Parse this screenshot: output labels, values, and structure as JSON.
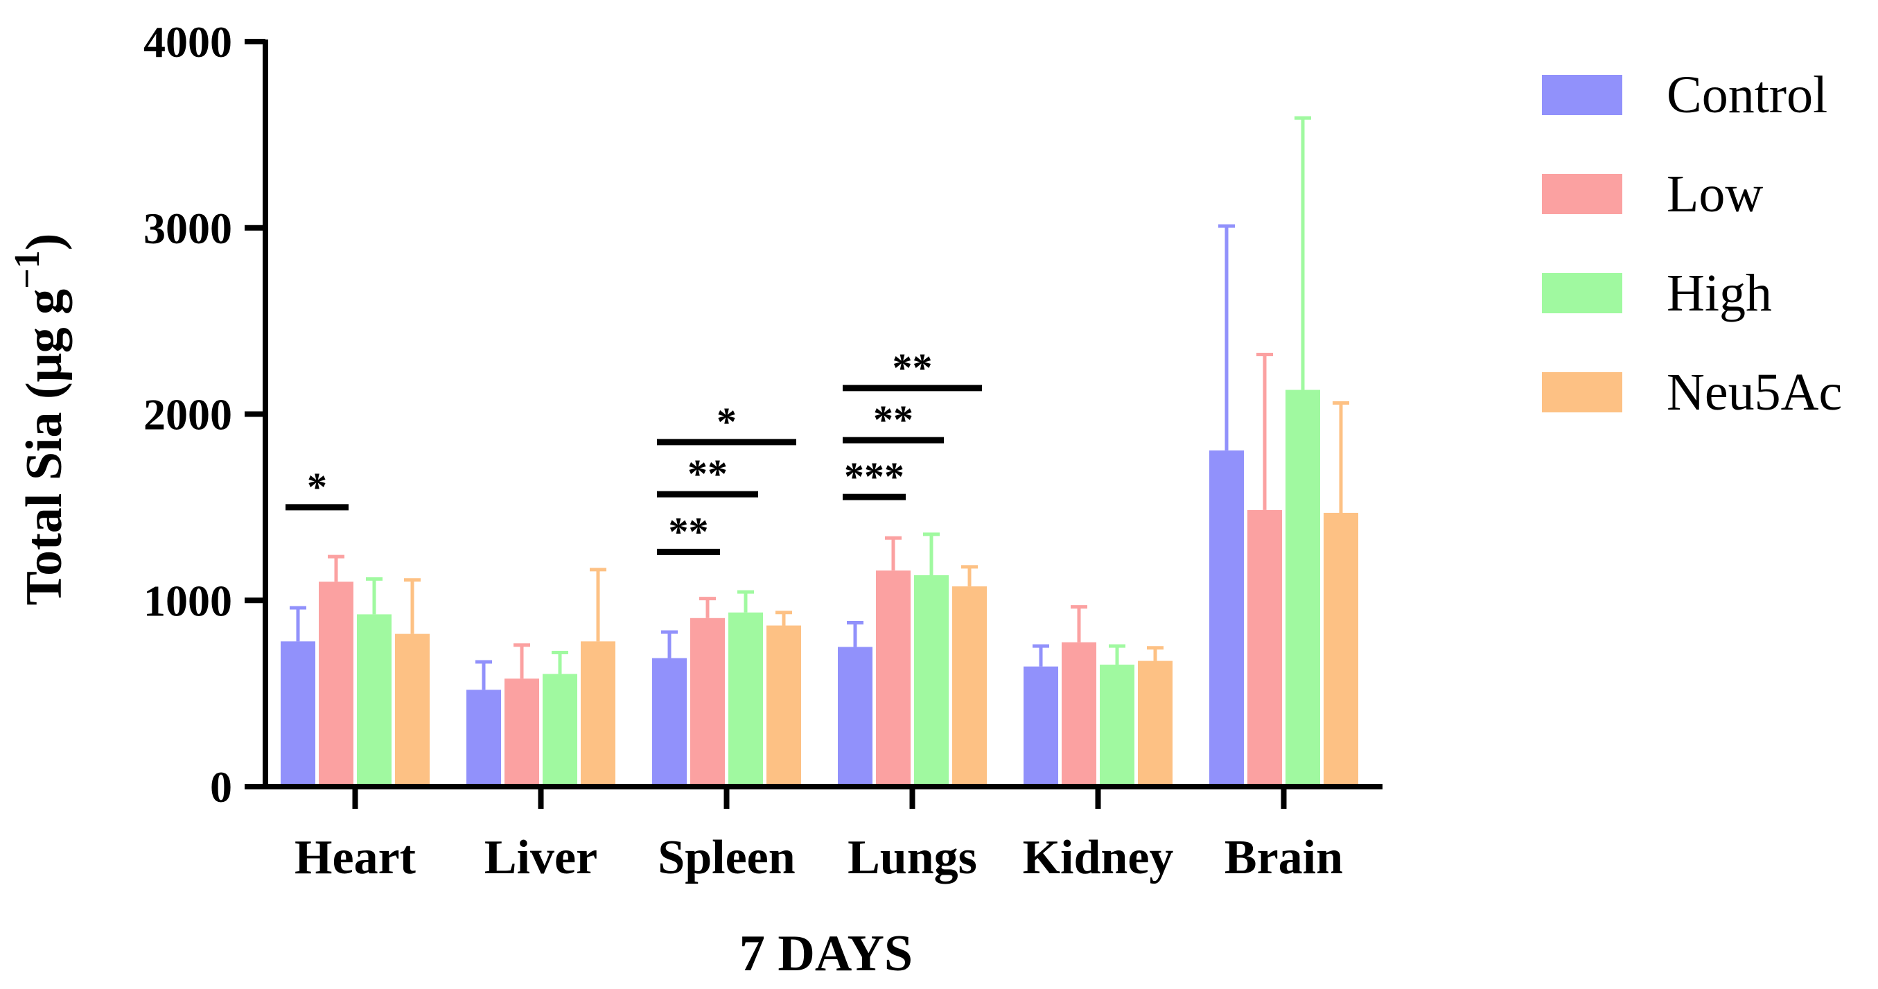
{
  "chart_data": {
    "type": "bar",
    "title": "",
    "xlabel": "7 DAYS",
    "ylabel": "Total Sia (μg g",
    "ylabel_superscript": "−1",
    "ylabel_close": ")",
    "ylim": [
      0,
      4000
    ],
    "yticks": [
      "0",
      "1000",
      "2000",
      "3000",
      "4000"
    ],
    "ytick_values": [
      0,
      1000,
      2000,
      3000,
      4000
    ],
    "categories": [
      "Heart",
      "Liver",
      "Spleen",
      "Lungs",
      "Kidney",
      "Brain"
    ],
    "legend_position": "top-right",
    "series": [
      {
        "name": "Control",
        "color": "#9191fb",
        "values": [
          780,
          520,
          690,
          750,
          645,
          1805
        ],
        "errors": [
          180,
          150,
          140,
          130,
          110,
          1205
        ]
      },
      {
        "name": "Low",
        "color": "#fba1a1",
        "values": [
          1100,
          580,
          905,
          1160,
          775,
          1485
        ],
        "errors": [
          135,
          180,
          105,
          175,
          190,
          835
        ]
      },
      {
        "name": "High",
        "color": "#a0f9a0",
        "values": [
          925,
          605,
          935,
          1135,
          655,
          2130
        ],
        "errors": [
          190,
          115,
          110,
          220,
          100,
          1460
        ]
      },
      {
        "name": "Neu5Ac",
        "color": "#fdc184",
        "values": [
          820,
          780,
          865,
          1075,
          675,
          1470
        ],
        "errors": [
          290,
          385,
          70,
          105,
          70,
          590
        ]
      }
    ],
    "significance": [
      {
        "category_index": 0,
        "from_series": 0,
        "to_series": 1,
        "y": 1500,
        "label": "*"
      },
      {
        "category_index": 2,
        "from_series": 0,
        "to_series": 1,
        "y": 1260,
        "label": "**"
      },
      {
        "category_index": 2,
        "from_series": 0,
        "to_series": 2,
        "y": 1570,
        "label": "**"
      },
      {
        "category_index": 2,
        "from_series": 0,
        "to_series": 3,
        "y": 1850,
        "label": "*"
      },
      {
        "category_index": 3,
        "from_series": 0,
        "to_series": 1,
        "y": 1555,
        "label": "***"
      },
      {
        "category_index": 3,
        "from_series": 0,
        "to_series": 2,
        "y": 1860,
        "label": "**"
      },
      {
        "category_index": 3,
        "from_series": 0,
        "to_series": 3,
        "y": 2140,
        "label": "**"
      }
    ]
  }
}
